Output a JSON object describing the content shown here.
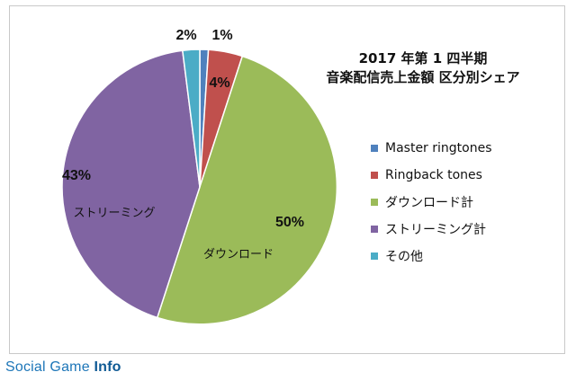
{
  "chart_data": {
    "type": "pie",
    "title_lines": [
      "2017 年第 1 四半期",
      "音楽配信売上金額 区分別シェア"
    ],
    "slices": [
      {
        "label": "Master ringtones",
        "value": 1,
        "data_label": "1%",
        "color": "#4f81bd"
      },
      {
        "label": "Ringback tones",
        "value": 4,
        "data_label": "4%",
        "color": "#c0504d"
      },
      {
        "label": "ダウンロード計",
        "value": 50,
        "data_label": "50%",
        "color": "#9bbb59",
        "inner_label": "ダウンロード"
      },
      {
        "label": "ストリーミング計",
        "value": 43,
        "data_label": "43%",
        "color": "#8064a2",
        "inner_label": "ストリーミング"
      },
      {
        "label": "その他",
        "value": 2,
        "data_label": "2%",
        "color": "#4bacc6"
      }
    ],
    "legend_position": "right"
  },
  "watermark": {
    "part1": "Social Game ",
    "part2": "Info"
  }
}
